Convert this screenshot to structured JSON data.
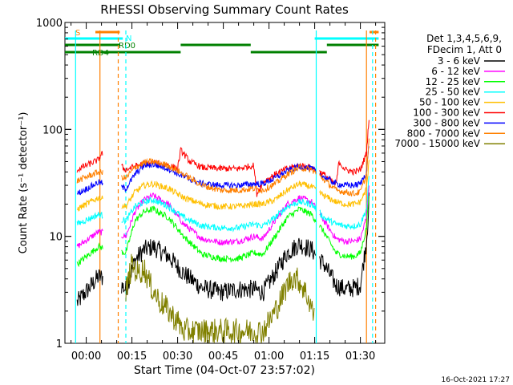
{
  "chart_data": {
    "type": "line",
    "title": "RHESSI Observing Summary Count Rates",
    "xlabel": "Start Time (04-Oct-07 23:57:02)",
    "ylabel": "Count Rate (s⁻¹ detector⁻¹)",
    "y_scale": "log",
    "ylim": [
      1,
      1000
    ],
    "xlim_minutes": [
      -7,
      98
    ],
    "x_unit": "minutes after 00:00",
    "y_ticks": [
      "1",
      "10",
      "100",
      "1000"
    ],
    "x_ticks": [
      "00:00",
      "00:15",
      "00:30",
      "00:45",
      "01:00",
      "01:15",
      "01:30"
    ],
    "timestamp": "16-Oct-2021 17:27",
    "legend": {
      "header": [
        "Det 1,3,4,5,6,9,",
        "FDecim 1, Att 0"
      ],
      "placement": "right"
    },
    "series": [
      {
        "name": "3 - 6 keV",
        "color": "#000000",
        "x": [
          -3,
          4,
          10,
          13,
          16,
          19,
          22,
          27,
          32,
          38,
          44,
          50,
          55,
          58,
          62,
          66,
          70,
          74,
          78,
          82,
          85,
          88,
          90,
          92,
          93
        ],
        "values": [
          2.4,
          4.2,
          3.8,
          3.2,
          6.0,
          7.5,
          8.0,
          6.5,
          4.5,
          3.3,
          3.0,
          3.2,
          3.2,
          3.0,
          4.5,
          7.0,
          8.5,
          7.5,
          5.5,
          3.5,
          3.2,
          3.3,
          3.5,
          9,
          25
        ]
      },
      {
        "name": "6 - 12 keV",
        "color": "#ff00ff",
        "x": [
          -3,
          4,
          13,
          16,
          19,
          22,
          27,
          32,
          38,
          44,
          50,
          55,
          58,
          62,
          66,
          70,
          74,
          78,
          82,
          85,
          88,
          90,
          92,
          93
        ],
        "values": [
          8,
          11,
          10,
          17,
          22,
          24,
          20,
          13,
          9.5,
          8.8,
          9.0,
          10,
          9.5,
          14,
          20,
          23,
          21,
          14,
          9.5,
          9,
          9,
          9.5,
          15,
          35
        ]
      },
      {
        "name": "12 - 25 keV",
        "color": "#00ff00",
        "x": [
          -3,
          4,
          13,
          16,
          19,
          22,
          27,
          32,
          38,
          44,
          50,
          55,
          58,
          62,
          66,
          70,
          74,
          78,
          82,
          85,
          88,
          90,
          92,
          93
        ],
        "values": [
          5.5,
          8,
          7,
          14,
          17,
          18,
          15,
          10,
          6.8,
          6.2,
          6.2,
          7,
          6.8,
          10,
          15,
          18,
          16,
          11,
          7,
          6.5,
          6.5,
          7,
          12,
          30
        ]
      },
      {
        "name": "25 - 50 keV",
        "color": "#00ffff",
        "x": [
          -3,
          4,
          13,
          16,
          19,
          22,
          27,
          32,
          38,
          44,
          50,
          55,
          58,
          62,
          66,
          70,
          74,
          78,
          82,
          85,
          88,
          90,
          92,
          93
        ],
        "values": [
          13,
          16,
          14,
          19,
          21,
          22,
          19,
          15,
          12.5,
          12,
          12,
          13,
          12.5,
          15,
          19,
          21,
          20,
          15,
          13,
          12.5,
          12.5,
          13,
          18,
          40
        ]
      },
      {
        "name": "50 - 100 keV",
        "color": "#ffbf00",
        "x": [
          -3,
          4,
          13,
          16,
          19,
          22,
          27,
          32,
          38,
          44,
          50,
          55,
          58,
          62,
          66,
          70,
          74,
          78,
          82,
          85,
          88,
          90,
          92,
          93
        ],
        "values": [
          18,
          23,
          19,
          26,
          30,
          31,
          28,
          23,
          20,
          19,
          19,
          20,
          20,
          22,
          27,
          31,
          29,
          24,
          21,
          20,
          20,
          21,
          28,
          55
        ]
      },
      {
        "name": "100 - 300 keV",
        "color": "#ff0000",
        "x": [
          -3,
          4,
          5,
          13,
          16,
          19,
          22,
          27,
          30,
          31,
          34,
          38,
          44,
          50,
          55,
          56,
          58,
          62,
          66,
          70,
          74,
          78,
          82,
          83,
          85,
          88,
          90,
          92,
          93
        ],
        "values": [
          42,
          52,
          60,
          42,
          45,
          48,
          49,
          46,
          43,
          64,
          50,
          44,
          43,
          43,
          46,
          25,
          32,
          38,
          43,
          46,
          44,
          38,
          30,
          50,
          42,
          40,
          42,
          60,
          150
        ]
      },
      {
        "name": "300 - 800 keV",
        "color": "#0000ff",
        "x": [
          -3,
          4,
          13,
          16,
          19,
          22,
          27,
          32,
          38,
          44,
          50,
          55,
          58,
          62,
          66,
          70,
          74,
          78,
          82,
          85,
          88,
          90,
          92,
          93
        ],
        "values": [
          25,
          32,
          28,
          38,
          46,
          47,
          43,
          36,
          31,
          30,
          30,
          31,
          31,
          35,
          41,
          45,
          43,
          36,
          31,
          30,
          30,
          31,
          40,
          80
        ]
      },
      {
        "name": "800 - 7000 keV",
        "color": "#ff8000",
        "x": [
          -3,
          4,
          13,
          16,
          19,
          22,
          27,
          32,
          38,
          44,
          50,
          55,
          58,
          62,
          66,
          70,
          74,
          78,
          82,
          85,
          88,
          90,
          92,
          93
        ],
        "values": [
          33,
          40,
          35,
          44,
          49,
          50,
          46,
          38,
          30,
          27,
          27,
          28,
          27,
          31,
          38,
          44,
          42,
          34,
          27,
          26,
          25,
          26,
          38,
          90
        ]
      },
      {
        "name": "7000 - 15000 keV",
        "color": "#808000",
        "x": [
          13,
          15,
          17,
          19,
          21,
          24,
          27,
          30,
          32,
          58,
          60,
          62,
          64,
          66,
          68,
          70,
          72,
          74,
          75
        ],
        "values": [
          3.0,
          5.5,
          4.5,
          5.0,
          3.5,
          2.5,
          2.0,
          1.6,
          1.3,
          1.3,
          1.6,
          2.0,
          2.6,
          3.5,
          4.2,
          3.8,
          3.0,
          2.2,
          1.6
        ]
      }
    ],
    "flag_bars": [
      {
        "label": "S",
        "color": "#ff8000",
        "segments": [
          [
            3,
            11
          ],
          [
            93,
            96
          ]
        ]
      },
      {
        "label": "N",
        "color": "#00ffff",
        "segments": [
          [
            -7,
            12
          ],
          [
            75,
            96
          ]
        ]
      },
      {
        "label": "RD0",
        "color": "#008000",
        "segments": [
          [
            -7,
            11
          ],
          [
            31,
            54
          ],
          [
            79,
            96
          ]
        ]
      },
      {
        "label": "RD4",
        "color": "#008000",
        "segments": [
          [
            -7,
            31
          ],
          [
            54,
            79
          ]
        ]
      }
    ],
    "vertical_markers": [
      {
        "minutes": -3.5,
        "color": "#00ffff",
        "style": "solid"
      },
      {
        "minutes": 4.5,
        "color": "#ff8000",
        "style": "solid"
      },
      {
        "minutes": 10.5,
        "color": "#ff8000",
        "style": "dashed"
      },
      {
        "minutes": 13,
        "color": "#00ffff",
        "style": "dashed"
      },
      {
        "minutes": 75.5,
        "color": "#00ffff",
        "style": "solid"
      },
      {
        "minutes": 92,
        "color": "#ff8000",
        "style": "solid"
      },
      {
        "minutes": 94,
        "color": "#00ffff",
        "style": "dashed"
      },
      {
        "minutes": 95,
        "color": "#ff8000",
        "style": "dashed"
      }
    ]
  }
}
